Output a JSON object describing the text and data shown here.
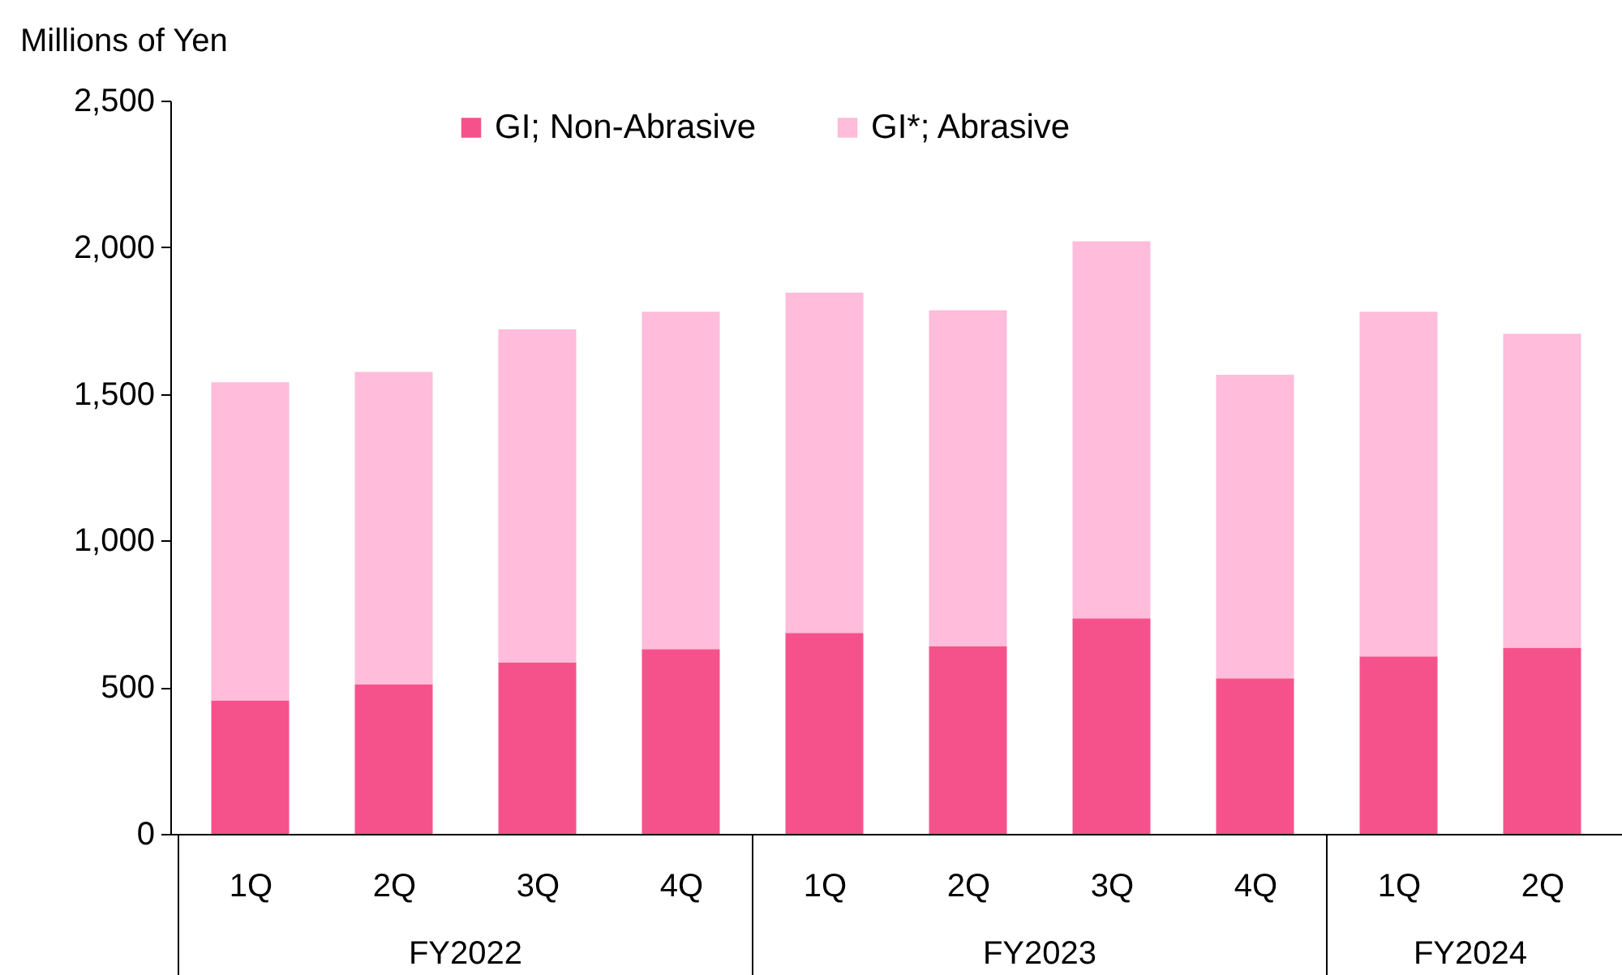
{
  "chart_data": {
    "type": "bar",
    "stacked": true,
    "ylabel": "Millions of Yen",
    "categories": [
      "1Q",
      "2Q",
      "3Q",
      "4Q",
      "1Q",
      "2Q",
      "3Q",
      "4Q",
      "1Q",
      "2Q"
    ],
    "series": [
      {
        "name": "GI; Non-Abrasive",
        "color": "#f5528c",
        "values": [
          455,
          510,
          585,
          630,
          685,
          640,
          735,
          530,
          605,
          635
        ]
      },
      {
        "name": "GI*; Abrasive",
        "color": "#ffbcdb",
        "values": [
          1085,
          1065,
          1135,
          1150,
          1160,
          1145,
          1285,
          1035,
          1175,
          1070
        ]
      }
    ],
    "ylim": [
      0,
      2500
    ],
    "yticks": [
      0,
      500,
      {
        "value": 1000,
        "label": "1,000"
      },
      {
        "value": 1500,
        "label": "1,500"
      },
      {
        "value": 2000,
        "label": "2,000"
      },
      {
        "value": 2500,
        "label": "2,500"
      }
    ],
    "grid": false,
    "legend": "top",
    "annotations": [
      "FY2022",
      "FY2023",
      "FY2024"
    ]
  }
}
